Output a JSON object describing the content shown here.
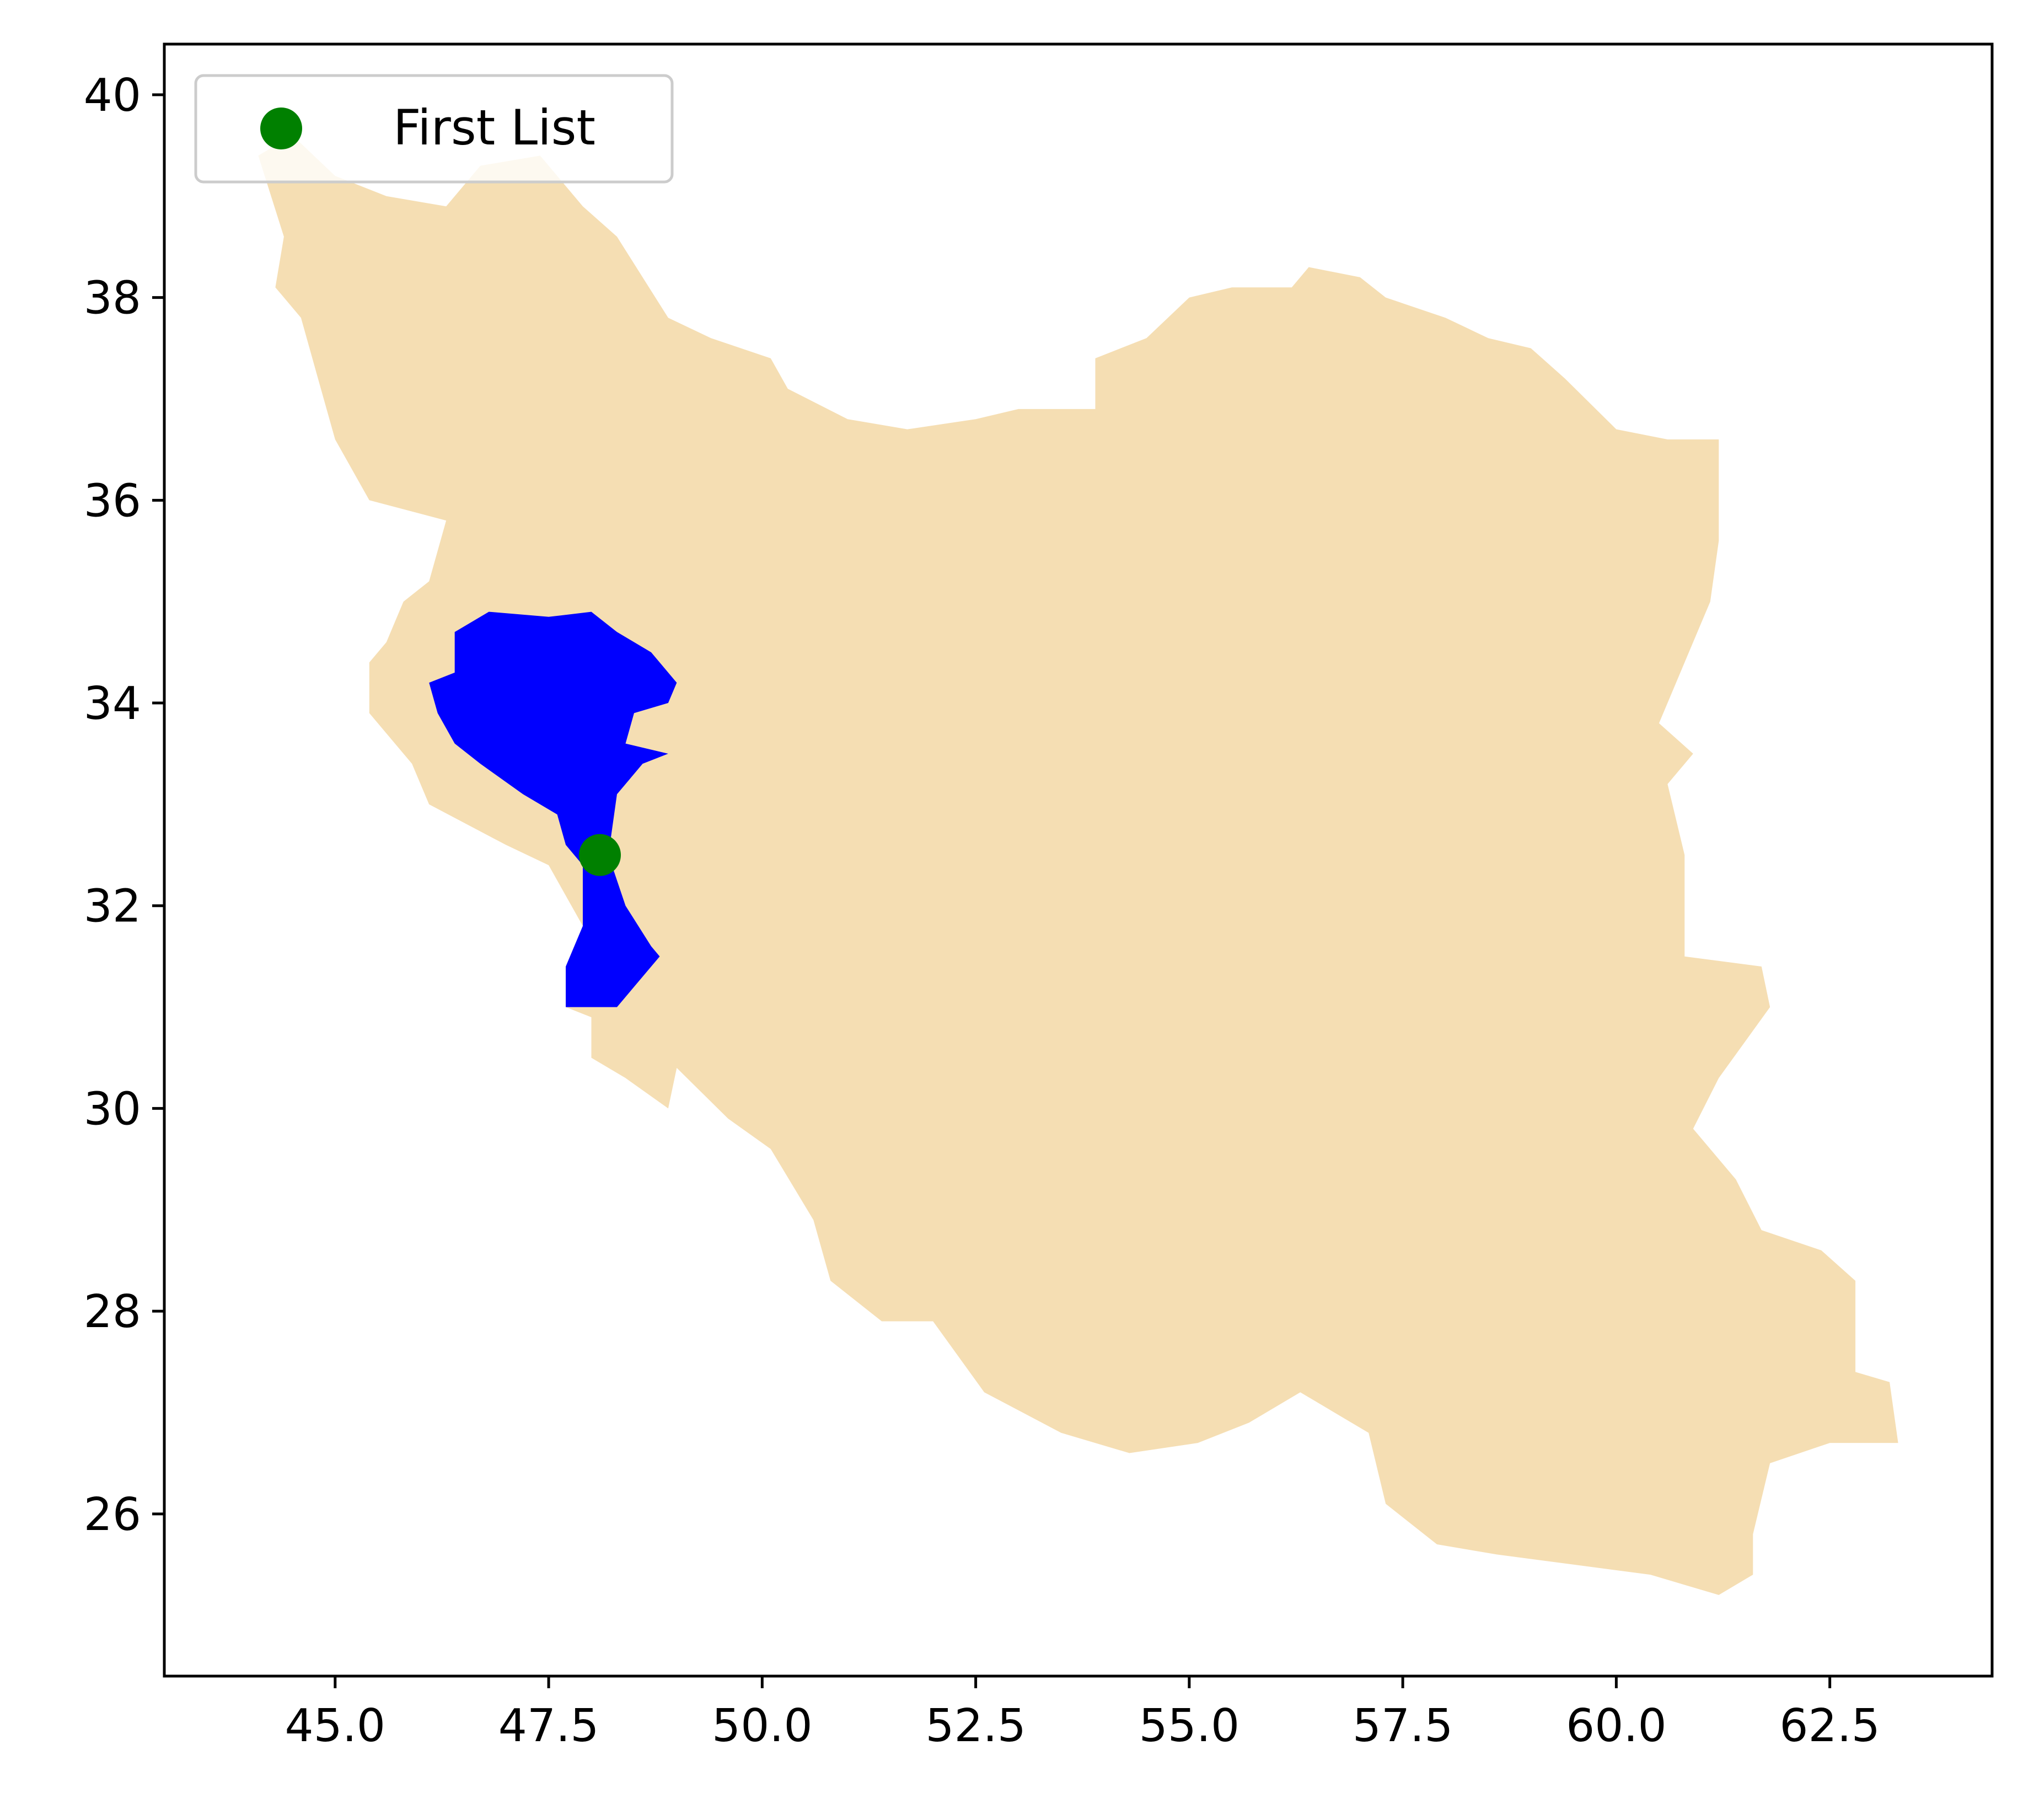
{
  "chart_data": {
    "type": "map",
    "xlim": [
      43.0,
      64.4
    ],
    "ylim": [
      24.4,
      40.5
    ],
    "x_ticks": [
      {
        "value": 45.0,
        "label": "45.0"
      },
      {
        "value": 47.5,
        "label": "47.5"
      },
      {
        "value": 50.0,
        "label": "50.0"
      },
      {
        "value": 52.5,
        "label": "52.5"
      },
      {
        "value": 55.0,
        "label": "55.0"
      },
      {
        "value": 57.5,
        "label": "57.5"
      },
      {
        "value": 60.0,
        "label": "60.0"
      },
      {
        "value": 62.5,
        "label": "62.5"
      }
    ],
    "y_ticks": [
      {
        "value": 26,
        "label": "26"
      },
      {
        "value": 28,
        "label": "28"
      },
      {
        "value": 30,
        "label": "30"
      },
      {
        "value": 32,
        "label": "32"
      },
      {
        "value": 34,
        "label": "34"
      },
      {
        "value": 36,
        "label": "36"
      },
      {
        "value": 38,
        "label": "38"
      },
      {
        "value": 40,
        "label": "40"
      }
    ],
    "country_color": "#f5deb3",
    "region_color": "#0000ff",
    "country_outline": [
      [
        44.1,
        39.4
      ],
      [
        44.5,
        39.6
      ],
      [
        45.0,
        39.2
      ],
      [
        45.6,
        39.0
      ],
      [
        46.3,
        38.9
      ],
      [
        46.7,
        39.3
      ],
      [
        47.4,
        39.4
      ],
      [
        47.9,
        38.9
      ],
      [
        48.3,
        38.6
      ],
      [
        48.9,
        37.8
      ],
      [
        49.4,
        37.6
      ],
      [
        50.1,
        37.4
      ],
      [
        50.3,
        37.1
      ],
      [
        51.0,
        36.8
      ],
      [
        51.7,
        36.7
      ],
      [
        52.5,
        36.8
      ],
      [
        53.0,
        36.9
      ],
      [
        53.9,
        36.9
      ],
      [
        53.9,
        37.4
      ],
      [
        54.5,
        37.6
      ],
      [
        55.0,
        38.0
      ],
      [
        55.5,
        38.1
      ],
      [
        56.2,
        38.1
      ],
      [
        56.4,
        38.3
      ],
      [
        57.0,
        38.2
      ],
      [
        57.3,
        38.0
      ],
      [
        58.0,
        37.8
      ],
      [
        58.5,
        37.6
      ],
      [
        59.0,
        37.5
      ],
      [
        59.4,
        37.2
      ],
      [
        60.0,
        36.7
      ],
      [
        60.6,
        36.6
      ],
      [
        61.2,
        36.6
      ],
      [
        61.2,
        35.6
      ],
      [
        61.1,
        35.0
      ],
      [
        60.8,
        34.4
      ],
      [
        60.5,
        33.8
      ],
      [
        60.9,
        33.5
      ],
      [
        60.6,
        33.2
      ],
      [
        60.8,
        32.5
      ],
      [
        60.8,
        31.5
      ],
      [
        61.7,
        31.4
      ],
      [
        61.8,
        31.0
      ],
      [
        61.2,
        30.3
      ],
      [
        60.9,
        29.8
      ],
      [
        61.4,
        29.3
      ],
      [
        61.7,
        28.8
      ],
      [
        62.4,
        28.6
      ],
      [
        62.8,
        28.3
      ],
      [
        62.8,
        27.4
      ],
      [
        63.2,
        27.3
      ],
      [
        63.3,
        26.7
      ],
      [
        62.5,
        26.7
      ],
      [
        61.8,
        26.5
      ],
      [
        61.6,
        25.8
      ],
      [
        61.6,
        25.4
      ],
      [
        61.2,
        25.2
      ],
      [
        60.4,
        25.4
      ],
      [
        59.5,
        25.5
      ],
      [
        58.6,
        25.6
      ],
      [
        57.9,
        25.7
      ],
      [
        57.3,
        26.1
      ],
      [
        57.1,
        26.8
      ],
      [
        56.3,
        27.2
      ],
      [
        55.7,
        26.9
      ],
      [
        55.1,
        26.7
      ],
      [
        54.3,
        26.6
      ],
      [
        53.5,
        26.8
      ],
      [
        52.6,
        27.2
      ],
      [
        52.0,
        27.9
      ],
      [
        51.4,
        27.9
      ],
      [
        50.8,
        28.3
      ],
      [
        50.6,
        28.9
      ],
      [
        50.1,
        29.6
      ],
      [
        49.6,
        29.9
      ],
      [
        49.0,
        30.4
      ],
      [
        48.9,
        30.0
      ],
      [
        48.4,
        30.3
      ],
      [
        48.0,
        30.5
      ],
      [
        48.0,
        30.9
      ],
      [
        47.7,
        31.0
      ],
      [
        47.7,
        31.4
      ],
      [
        47.9,
        31.8
      ],
      [
        47.5,
        32.4
      ],
      [
        47.0,
        32.6
      ],
      [
        46.1,
        33.0
      ],
      [
        45.9,
        33.4
      ],
      [
        45.4,
        33.9
      ],
      [
        45.4,
        34.4
      ],
      [
        45.6,
        34.6
      ],
      [
        45.8,
        35.0
      ],
      [
        46.1,
        35.2
      ],
      [
        46.3,
        35.8
      ],
      [
        45.4,
        36.0
      ],
      [
        45.0,
        36.6
      ],
      [
        44.8,
        37.2
      ],
      [
        44.6,
        37.8
      ],
      [
        44.3,
        38.1
      ],
      [
        44.4,
        38.6
      ],
      [
        44.1,
        39.4
      ]
    ],
    "highlighted_region": [
      [
        46.4,
        34.7
      ],
      [
        46.8,
        34.9
      ],
      [
        47.5,
        34.85
      ],
      [
        48.0,
        34.9
      ],
      [
        48.3,
        34.7
      ],
      [
        48.7,
        34.5
      ],
      [
        49.0,
        34.2
      ],
      [
        48.9,
        34.0
      ],
      [
        48.5,
        33.9
      ],
      [
        48.4,
        33.6
      ],
      [
        48.9,
        33.5
      ],
      [
        48.6,
        33.4
      ],
      [
        48.3,
        33.1
      ],
      [
        48.2,
        32.5
      ],
      [
        48.4,
        32.0
      ],
      [
        48.7,
        31.6
      ],
      [
        48.8,
        31.5
      ],
      [
        48.3,
        31.0
      ],
      [
        47.7,
        31.0
      ],
      [
        47.7,
        31.4
      ],
      [
        47.9,
        31.8
      ],
      [
        47.9,
        32.4
      ],
      [
        47.7,
        32.6
      ],
      [
        47.6,
        32.9
      ],
      [
        47.2,
        33.1
      ],
      [
        46.7,
        33.4
      ],
      [
        46.4,
        33.6
      ],
      [
        46.2,
        33.9
      ],
      [
        46.1,
        34.2
      ],
      [
        46.4,
        34.3
      ],
      [
        46.4,
        34.7
      ]
    ],
    "series": [
      {
        "name": "First List",
        "type": "scatter",
        "color": "#008000",
        "points": [
          {
            "x": 48.1,
            "y": 32.5
          }
        ]
      }
    ],
    "legend": {
      "placement": "top-left",
      "entries": [
        "First List"
      ]
    }
  }
}
